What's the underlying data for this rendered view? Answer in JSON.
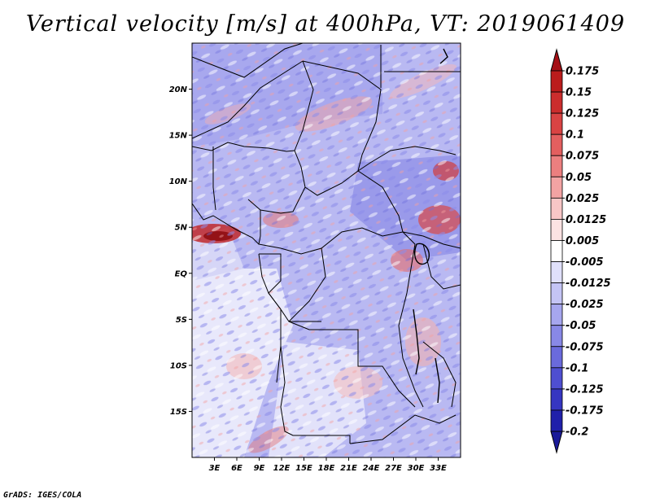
{
  "title": "Vertical velocity [m/s] at 400hPa, VT: 2019061409",
  "footer": "GrADS: IGES/COLA",
  "map": {
    "lon_range": [
      0,
      36
    ],
    "lat_range": [
      -20,
      25
    ],
    "lat_ticks": [
      {
        "value": 20,
        "label": "20N"
      },
      {
        "value": 15,
        "label": "15N"
      },
      {
        "value": 10,
        "label": "10N"
      },
      {
        "value": 5,
        "label": "5N"
      },
      {
        "value": 0,
        "label": "EQ"
      },
      {
        "value": -5,
        "label": "5S"
      },
      {
        "value": -10,
        "label": "10S"
      },
      {
        "value": -15,
        "label": "15S"
      }
    ],
    "lon_ticks": [
      {
        "value": 3,
        "label": "3E"
      },
      {
        "value": 6,
        "label": "6E"
      },
      {
        "value": 9,
        "label": "9E"
      },
      {
        "value": 12,
        "label": "12E"
      },
      {
        "value": 15,
        "label": "15E"
      },
      {
        "value": 18,
        "label": "18E"
      },
      {
        "value": 21,
        "label": "21E"
      },
      {
        "value": 24,
        "label": "24E"
      },
      {
        "value": 27,
        "label": "27E"
      },
      {
        "value": 30,
        "label": "30E"
      },
      {
        "value": 33,
        "label": "33E"
      }
    ]
  },
  "colorbar": {
    "levels": [
      {
        "label": "0.175",
        "color": "#a50f15"
      },
      {
        "label": "0.15",
        "color": "#bb1c1c"
      },
      {
        "label": "0.125",
        "color": "#cb2d2d"
      },
      {
        "label": "0.1",
        "color": "#d94343"
      },
      {
        "label": "0.075",
        "color": "#e35f5f"
      },
      {
        "label": "0.05",
        "color": "#ec7f7f"
      },
      {
        "label": "0.025",
        "color": "#f3a3a3"
      },
      {
        "label": "0.0125",
        "color": "#f8c6c6"
      },
      {
        "label": "0.005",
        "color": "#fce3e3"
      },
      {
        "label": "-0.005",
        "color": "#ffffff"
      },
      {
        "label": "-0.0125",
        "color": "#e0e0fb"
      },
      {
        "label": "-0.025",
        "color": "#c4c4f5"
      },
      {
        "label": "-0.05",
        "color": "#a6a6ee"
      },
      {
        "label": "-0.075",
        "color": "#8888e6"
      },
      {
        "label": "-0.1",
        "color": "#6a6adc"
      },
      {
        "label": "-0.125",
        "color": "#4f4fd1"
      },
      {
        "label": "-0.175",
        "color": "#3636c1"
      },
      {
        "label": "-0.2",
        "color": "#2020aa"
      }
    ],
    "top_color": "#a50f15",
    "bottom_color": "#1a1a99"
  }
}
